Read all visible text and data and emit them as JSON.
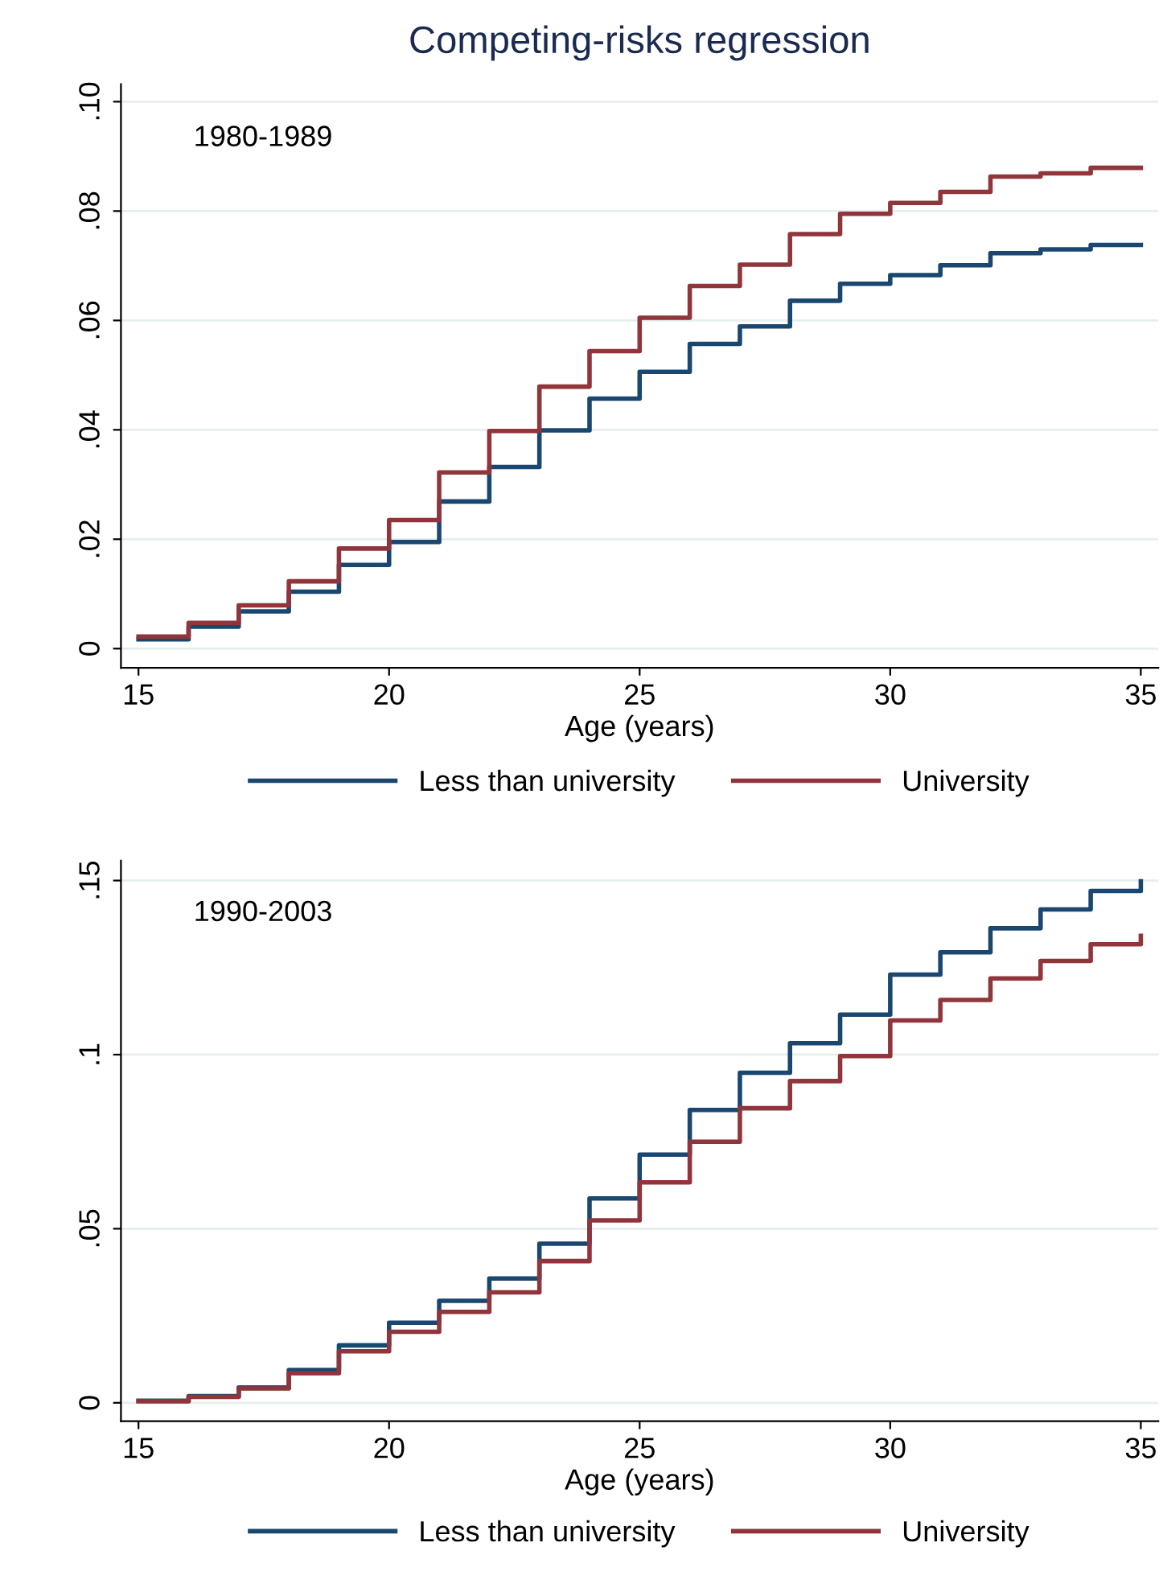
{
  "chart_data": [
    {
      "type": "step",
      "title": "Competing-risks regression",
      "xlabel": "Age (years)",
      "annotations": [
        "1980-1989"
      ],
      "x": [
        15,
        16,
        17,
        18,
        19,
        20,
        21,
        22,
        23,
        24,
        25,
        26,
        27,
        28,
        29,
        30,
        31,
        32,
        33,
        34,
        35
      ],
      "series": [
        {
          "name": "Less than university",
          "color": "#1a476f",
          "values": [
            0.0017,
            0.004,
            0.0068,
            0.0104,
            0.0153,
            0.0195,
            0.0269,
            0.0332,
            0.0399,
            0.0457,
            0.0506,
            0.0557,
            0.0589,
            0.0636,
            0.0667,
            0.0683,
            0.0701,
            0.0723,
            0.073,
            0.0738,
            0.0738
          ]
        },
        {
          "name": "University",
          "color": "#90353b",
          "values": [
            0.0022,
            0.0047,
            0.0079,
            0.0123,
            0.0183,
            0.0235,
            0.0322,
            0.0398,
            0.0479,
            0.0544,
            0.0605,
            0.0663,
            0.0702,
            0.0758,
            0.0795,
            0.0815,
            0.0835,
            0.0863,
            0.0869,
            0.0879,
            0.0879
          ]
        }
      ],
      "xlim": [
        14.65,
        35.35
      ],
      "xticks": [
        15,
        20,
        25,
        30,
        35
      ],
      "ylim": [
        -0.0035,
        0.1032
      ],
      "yticks": [
        {
          "value": 0,
          "label": "0"
        },
        {
          "value": 0.02,
          "label": ".02"
        },
        {
          "value": 0.04,
          "label": ".04"
        },
        {
          "value": 0.06,
          "label": ".06"
        },
        {
          "value": 0.08,
          "label": ".08"
        },
        {
          "value": 0.1,
          "label": ".10"
        }
      ],
      "grid": "y",
      "legend": "bottom",
      "line_style": "solid"
    },
    {
      "type": "step",
      "xlabel": "Age (years)",
      "annotations": [
        "1990-2003"
      ],
      "x": [
        15,
        16,
        17,
        18,
        19,
        20,
        21,
        22,
        23,
        24,
        25,
        26,
        27,
        28,
        29,
        30,
        31,
        32,
        33,
        34,
        35
      ],
      "series": [
        {
          "name": "Less than university",
          "color": "#1a476f",
          "values": [
            0.0006,
            0.0019,
            0.0044,
            0.0094,
            0.0165,
            0.023,
            0.0293,
            0.0357,
            0.0457,
            0.0587,
            0.0713,
            0.0841,
            0.0948,
            0.1033,
            0.1115,
            0.123,
            0.1294,
            0.1363,
            0.1417,
            0.147,
            0.1498
          ]
        },
        {
          "name": "University",
          "color": "#90353b",
          "values": [
            0.0004,
            0.0017,
            0.0041,
            0.0085,
            0.0148,
            0.0204,
            0.0261,
            0.0317,
            0.0407,
            0.0524,
            0.0633,
            0.075,
            0.0846,
            0.0924,
            0.0996,
            0.1098,
            0.1157,
            0.1219,
            0.1269,
            0.1317,
            0.1341
          ]
        }
      ],
      "xlim": [
        14.65,
        35.35
      ],
      "xticks": [
        15,
        20,
        25,
        30,
        35
      ],
      "ylim": [
        -0.0053,
        0.1557
      ],
      "yticks": [
        {
          "value": 0,
          "label": "0"
        },
        {
          "value": 0.05,
          "label": ".05"
        },
        {
          "value": 0.1,
          "label": ".1"
        },
        {
          "value": 0.15,
          "label": ".15"
        }
      ],
      "grid": "y",
      "legend": "bottom",
      "line_style": "solid"
    }
  ]
}
